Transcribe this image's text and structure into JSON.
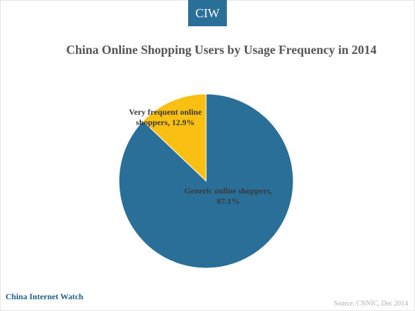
{
  "brand": {
    "badge": "CIW",
    "footer": "China Internet Watch"
  },
  "source": "Source: CNNIC, Dec 2014",
  "colors": {
    "generic": "#2a6f97",
    "frequent": "#f9c013",
    "badge": "#2a6f97"
  },
  "chart_data": {
    "type": "pie",
    "title": "China Online Shopping Users by Usage Frequency in 2014",
    "slices": [
      {
        "label": "Very frequent online shoppers, 12.9%",
        "value": 12.9,
        "label_lines": [
          "Very frequent online",
          "shoppers, 12.9%"
        ]
      },
      {
        "label": "Generic online shoppers, 87.1%",
        "value": 87.1,
        "label_lines": [
          "Generic online shoppers,",
          "87.1%"
        ]
      }
    ]
  }
}
